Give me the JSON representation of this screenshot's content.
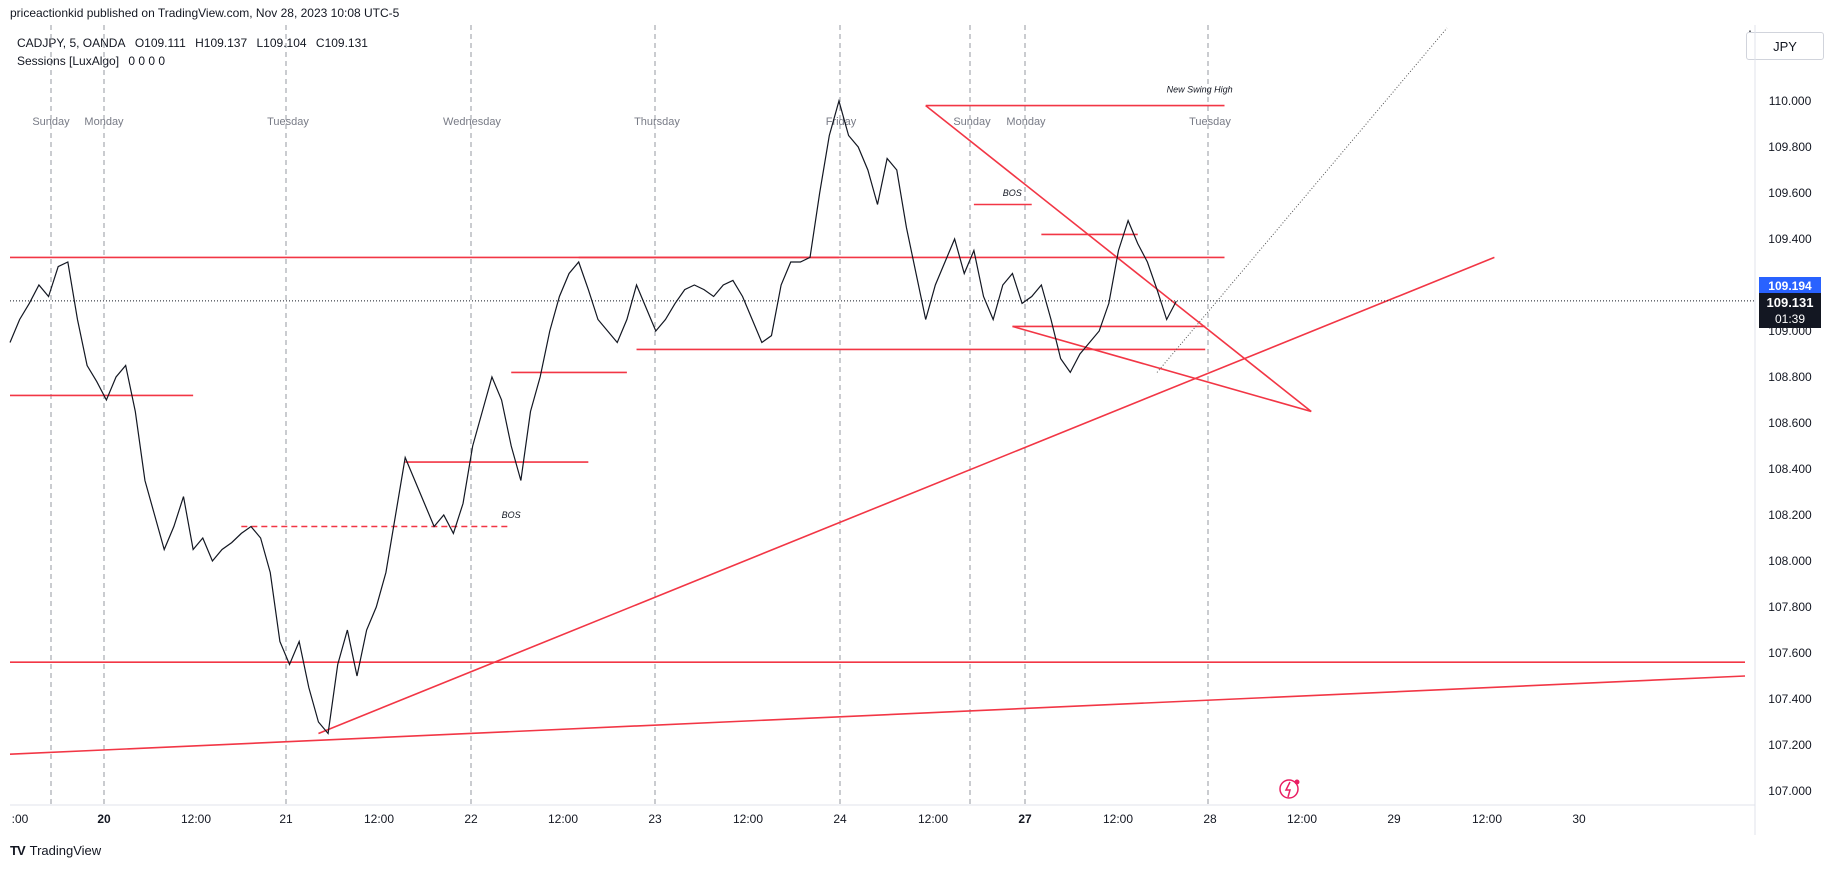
{
  "header": {
    "published_line": "priceactionkid published on TradingView.com, Nov 28, 2023 10:08 UTC-5"
  },
  "legend": {
    "symbol_line": "CADJPY, 5, OANDA",
    "open": "O109.111",
    "high": "H109.137",
    "low": "L109.104",
    "close": "C109.131",
    "indicator": "Sessions [LuxAlgo]",
    "indicator_values": "0 0 0 0"
  },
  "price_scale": {
    "currency": "JPY",
    "menu_icon": "three-dots-vertical-icon",
    "last_price_label": "109.131",
    "countdown_label": "01:39",
    "bid_label": "109.194"
  },
  "footer": {
    "logo_mark": "TV",
    "logo_text": "TradingView"
  },
  "chart_data": {
    "type": "line",
    "symbol": "CADJPY",
    "interval": "5",
    "source": "OANDA",
    "title": "CADJPY, 5, OANDA",
    "ylim": [
      107.0,
      110.1
    ],
    "y_ticks": [
      "110.000",
      "109.800",
      "109.600",
      "109.400",
      "109.200",
      "109.000",
      "108.800",
      "108.600",
      "108.400",
      "108.200",
      "108.000",
      "107.800",
      "107.600",
      "107.400",
      "107.200",
      "107.000"
    ],
    "x_ticks": [
      ":00",
      "20",
      "12:00",
      "21",
      "12:00",
      "22",
      "12:00",
      "23",
      "12:00",
      "24",
      "12:00",
      "27",
      "12:00",
      "28",
      "12:00",
      "29",
      "12:00",
      "30"
    ],
    "x_ticks_bold": [
      "20",
      "27"
    ],
    "session_labels": [
      "Sunday",
      "Monday",
      "Tuesday",
      "Wednesday",
      "Thursday",
      "Friday",
      "Sunday",
      "Monday",
      "Tuesday"
    ],
    "grid": false,
    "current_price": 109.131,
    "price_path": [
      [
        0,
        108.95
      ],
      [
        1,
        109.05
      ],
      [
        2,
        109.12
      ],
      [
        3,
        109.2
      ],
      [
        4,
        109.15
      ],
      [
        5,
        109.28
      ],
      [
        6,
        109.3
      ],
      [
        7,
        109.05
      ],
      [
        8,
        108.85
      ],
      [
        9,
        108.78
      ],
      [
        10,
        108.7
      ],
      [
        11,
        108.8
      ],
      [
        12,
        108.85
      ],
      [
        13,
        108.65
      ],
      [
        14,
        108.35
      ],
      [
        15,
        108.2
      ],
      [
        16,
        108.05
      ],
      [
        17,
        108.15
      ],
      [
        18,
        108.28
      ],
      [
        19,
        108.05
      ],
      [
        20,
        108.1
      ],
      [
        21,
        108.0
      ],
      [
        22,
        108.05
      ],
      [
        23,
        108.08
      ],
      [
        24,
        108.12
      ],
      [
        25,
        108.15
      ],
      [
        26,
        108.1
      ],
      [
        27,
        107.95
      ],
      [
        28,
        107.65
      ],
      [
        29,
        107.55
      ],
      [
        30,
        107.65
      ],
      [
        31,
        107.45
      ],
      [
        32,
        107.3
      ],
      [
        33,
        107.25
      ],
      [
        34,
        107.55
      ],
      [
        35,
        107.7
      ],
      [
        36,
        107.5
      ],
      [
        37,
        107.7
      ],
      [
        38,
        107.8
      ],
      [
        39,
        107.95
      ],
      [
        40,
        108.2
      ],
      [
        41,
        108.45
      ],
      [
        42,
        108.35
      ],
      [
        43,
        108.25
      ],
      [
        44,
        108.15
      ],
      [
        45,
        108.2
      ],
      [
        46,
        108.12
      ],
      [
        47,
        108.25
      ],
      [
        48,
        108.5
      ],
      [
        49,
        108.65
      ],
      [
        50,
        108.8
      ],
      [
        51,
        108.7
      ],
      [
        52,
        108.5
      ],
      [
        53,
        108.35
      ],
      [
        54,
        108.65
      ],
      [
        55,
        108.8
      ],
      [
        56,
        109.0
      ],
      [
        57,
        109.15
      ],
      [
        58,
        109.25
      ],
      [
        59,
        109.3
      ],
      [
        60,
        109.18
      ],
      [
        61,
        109.05
      ],
      [
        62,
        109.0
      ],
      [
        63,
        108.95
      ],
      [
        64,
        109.05
      ],
      [
        65,
        109.2
      ],
      [
        66,
        109.1
      ],
      [
        67,
        109.0
      ],
      [
        68,
        109.05
      ],
      [
        69,
        109.12
      ],
      [
        70,
        109.18
      ],
      [
        71,
        109.2
      ],
      [
        72,
        109.18
      ],
      [
        73,
        109.15
      ],
      [
        74,
        109.2
      ],
      [
        75,
        109.22
      ],
      [
        76,
        109.15
      ],
      [
        77,
        109.05
      ],
      [
        78,
        108.95
      ],
      [
        79,
        108.98
      ],
      [
        80,
        109.2
      ],
      [
        81,
        109.3
      ],
      [
        82,
        109.3
      ],
      [
        83,
        109.32
      ],
      [
        84,
        109.6
      ],
      [
        85,
        109.85
      ],
      [
        86,
        110.0
      ],
      [
        87,
        109.85
      ],
      [
        88,
        109.8
      ],
      [
        89,
        109.7
      ],
      [
        90,
        109.55
      ],
      [
        91,
        109.75
      ],
      [
        92,
        109.7
      ],
      [
        93,
        109.45
      ],
      [
        94,
        109.25
      ],
      [
        95,
        109.05
      ],
      [
        96,
        109.2
      ],
      [
        97,
        109.3
      ],
      [
        98,
        109.4
      ],
      [
        99,
        109.25
      ],
      [
        100,
        109.35
      ],
      [
        101,
        109.15
      ],
      [
        102,
        109.05
      ],
      [
        103,
        109.2
      ],
      [
        104,
        109.25
      ],
      [
        105,
        109.12
      ],
      [
        106,
        109.15
      ],
      [
        107,
        109.2
      ],
      [
        108,
        109.05
      ],
      [
        109,
        108.88
      ],
      [
        110,
        108.82
      ],
      [
        111,
        108.9
      ],
      [
        112,
        108.95
      ],
      [
        113,
        109.0
      ],
      [
        114,
        109.12
      ],
      [
        115,
        109.35
      ],
      [
        116,
        109.48
      ],
      [
        117,
        109.38
      ],
      [
        118,
        109.3
      ],
      [
        119,
        109.18
      ],
      [
        120,
        109.05
      ],
      [
        121,
        109.13
      ]
    ],
    "horizontal_levels": [
      {
        "price": 109.32,
        "x_range": [
          0,
          86
        ],
        "dashed": false
      },
      {
        "price": 108.72,
        "x_range": [
          0,
          19
        ],
        "dashed": false
      },
      {
        "price": 108.15,
        "x_range": [
          24,
          52
        ],
        "dashed": true
      },
      {
        "price": 108.43,
        "x_range": [
          41,
          60
        ],
        "dashed": false
      },
      {
        "price": 108.82,
        "x_range": [
          52,
          64
        ],
        "dashed": false
      },
      {
        "price": 109.32,
        "x_range": [
          59,
          126
        ],
        "dashed": false
      },
      {
        "price": 108.92,
        "x_range": [
          65,
          124
        ],
        "dashed": false
      },
      {
        "price": 109.42,
        "x_range": [
          107,
          117
        ],
        "dashed": false
      },
      {
        "price": 109.02,
        "x_range": [
          104,
          124
        ],
        "dashed": false
      },
      {
        "price": 109.55,
        "x_range": [
          100,
          106
        ],
        "dashed": false
      },
      {
        "price": 109.98,
        "x_range": [
          95,
          126
        ],
        "dashed": false
      },
      {
        "price": 107.56,
        "x_range": [
          0,
          180
        ],
        "dashed": false
      }
    ],
    "trend_lines": [
      {
        "from": [
          0,
          107.16
        ],
        "to": [
          180,
          107.5
        ]
      },
      {
        "from": [
          32,
          107.25
        ],
        "to": [
          154,
          109.32
        ]
      },
      {
        "from": [
          95,
          109.98
        ],
        "to": [
          135,
          108.65
        ]
      },
      {
        "from": [
          104,
          109.02
        ],
        "to": [
          135,
          108.65
        ]
      }
    ],
    "annotations": [
      {
        "text": "New Swing High",
        "x": 120,
        "price": 110.02
      },
      {
        "text": "BOS",
        "x": 103,
        "price": 109.57
      },
      {
        "text": "BOS",
        "x": 51,
        "price": 108.17
      }
    ]
  }
}
